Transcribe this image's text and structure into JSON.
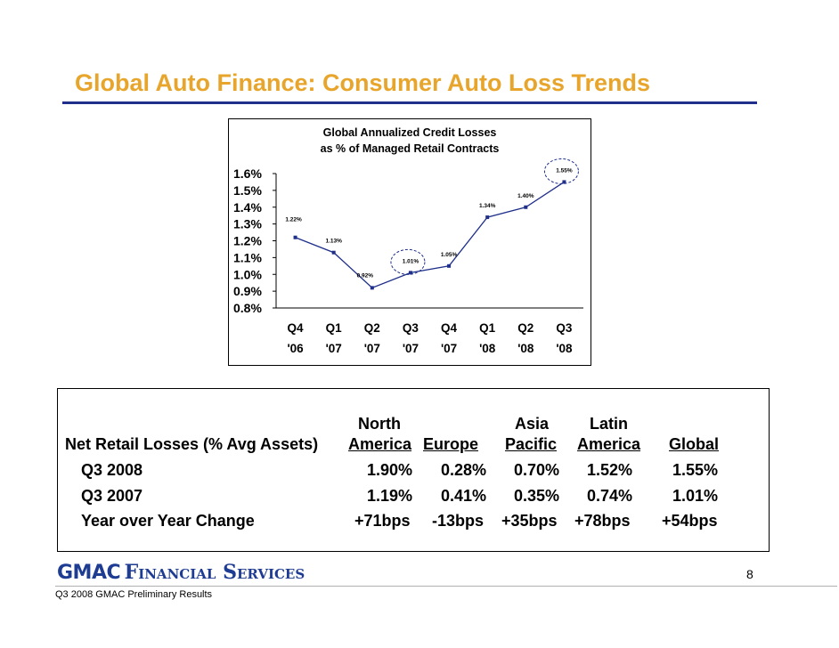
{
  "slide": {
    "title": "Global Auto Finance: Consumer Auto Loss Trends",
    "page_number": "8",
    "footer": "Q3 2008 GMAC Preliminary Results",
    "logo_text_gmac": "GMAC",
    "logo_text_fs": "Financial Services"
  },
  "colors": {
    "title": "#e8a52c",
    "rule": "#1f2f8a",
    "series": "#1f2f8a",
    "logo": "#1f3c93"
  },
  "chart_data": {
    "type": "line",
    "title_line1": "Global Annualized Credit Losses",
    "title_line2": "as % of Managed Retail Contracts",
    "categories": [
      "Q4 '06",
      "Q1 '07",
      "Q2 '07",
      "Q3 '07",
      "Q4 '07",
      "Q1 '08",
      "Q2 '08",
      "Q3 '08"
    ],
    "category_lines": [
      [
        "Q4",
        "'06"
      ],
      [
        "Q1",
        "'07"
      ],
      [
        "Q2",
        "'07"
      ],
      [
        "Q3",
        "'07"
      ],
      [
        "Q4",
        "'07"
      ],
      [
        "Q1",
        "'08"
      ],
      [
        "Q2",
        "'08"
      ],
      [
        "Q3",
        "'08"
      ]
    ],
    "values": [
      1.22,
      1.13,
      0.92,
      1.01,
      1.05,
      1.34,
      1.4,
      1.55
    ],
    "data_labels": [
      "1.22%",
      "1.13%",
      "0.92%",
      "1.01%",
      "1.05%",
      "1.34%",
      "1.40%",
      "1.55%"
    ],
    "ylim": [
      0.8,
      1.6
    ],
    "yticks": [
      0.8,
      0.9,
      1.0,
      1.1,
      1.2,
      1.3,
      1.4,
      1.5,
      1.6
    ],
    "ytick_labels": [
      "0.8%",
      "0.9%",
      "1.0%",
      "1.1%",
      "1.2%",
      "1.3%",
      "1.4%",
      "1.5%",
      "1.6%"
    ],
    "highlighted_points": [
      "Q3 '07",
      "Q3 '08"
    ],
    "grid": false,
    "legend": "none"
  },
  "table": {
    "row_header": "Net Retail Losses (% Avg Assets)",
    "columns": [
      {
        "line1": "North",
        "line2": "America"
      },
      {
        "line1": "",
        "line2": "Europe"
      },
      {
        "line1": "Asia",
        "line2": "Pacific"
      },
      {
        "line1": "Latin",
        "line2": "America"
      },
      {
        "line1": "",
        "line2": "Global"
      }
    ],
    "rows": [
      {
        "label": "Q3 2008",
        "values": [
          "1.90%",
          "0.28%",
          "0.70%",
          "1.52%",
          "1.55%"
        ]
      },
      {
        "label": "Q3 2007",
        "values": [
          "1.19%",
          "0.41%",
          "0.35%",
          "0.74%",
          "1.01%"
        ]
      },
      {
        "label": "Year over Year Change",
        "values": [
          "+71bps",
          "-13bps",
          "+35bps",
          "+78bps",
          "+54bps"
        ]
      }
    ]
  }
}
